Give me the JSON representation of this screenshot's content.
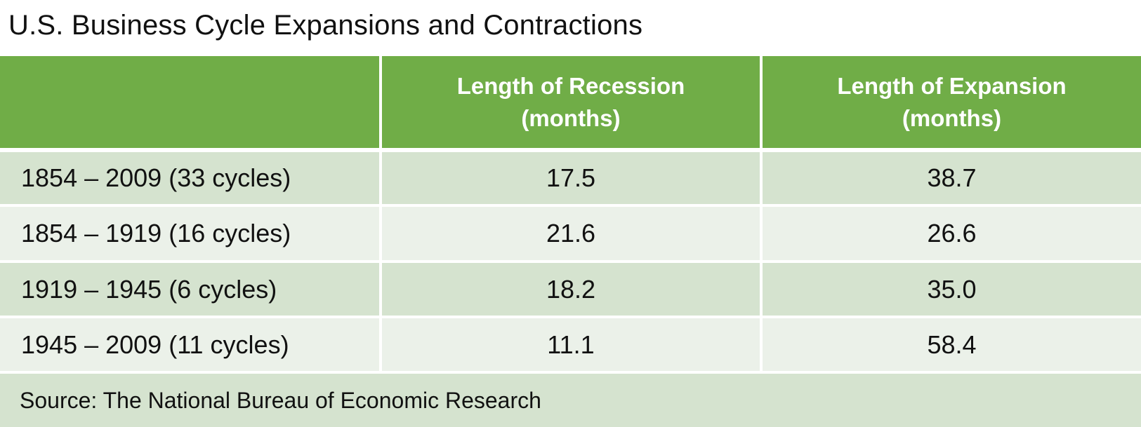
{
  "chart_data": {
    "type": "table",
    "title": "U.S. Business Cycle Expansions and Contractions",
    "columns": [
      "",
      "Length of Recession (months)",
      "Length of Expansion (months)"
    ],
    "header": {
      "col1": "",
      "col2_line1": "Length of Recession",
      "col2_line2": "(months)",
      "col3_line1": "Length of Expansion",
      "col3_line2": "(months)"
    },
    "rows": [
      {
        "period": "1854 – 2009 (33 cycles)",
        "recession": "17.5",
        "expansion": "38.7"
      },
      {
        "period": "1854 – 1919 (16 cycles)",
        "recession": "21.6",
        "expansion": "26.6"
      },
      {
        "period": "1919 – 1945 (6 cycles)",
        "recession": "18.2",
        "expansion": "35.0"
      },
      {
        "period": "1945 – 2009 (11 cycles)",
        "recession": "11.1",
        "expansion": "58.4"
      }
    ],
    "source": "Source: The National Bureau of Economic Research"
  },
  "colors": {
    "header_bg": "#70ad47",
    "row_dark": "#d5e3cf",
    "row_light": "#ebf1e9"
  }
}
